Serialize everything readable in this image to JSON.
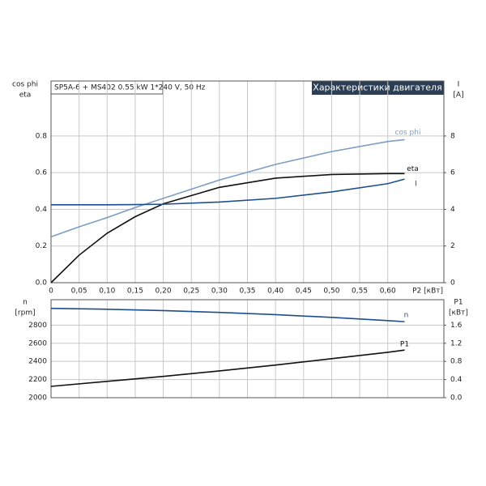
{
  "chart_data": [
    {
      "type": "line",
      "info": "SP5A-6 + MS402  0.55 kW  1*240 V, 50 Hz",
      "title": "Характеристики двигателя",
      "ylabel": [
        "cos phi",
        "eta"
      ],
      "y2label": [
        "I",
        "[A]"
      ],
      "xlabel": "P2 [кВт]",
      "xlim": [
        0,
        0.7
      ],
      "xticks": [
        0,
        {
          "value": 0.05,
          "label": "0,05"
        },
        {
          "value": 0.1,
          "label": "0,10"
        },
        {
          "value": 0.15,
          "label": "0,15"
        },
        {
          "value": 0.2,
          "label": "0,20"
        },
        {
          "value": 0.25,
          "label": "0,25"
        },
        {
          "value": 0.3,
          "label": "0,30"
        },
        {
          "value": 0.35,
          "label": "0,35"
        },
        {
          "value": 0.4,
          "label": "0,40"
        },
        {
          "value": 0.45,
          "label": "0,45"
        },
        {
          "value": 0.5,
          "label": "0,50"
        },
        {
          "value": 0.55,
          "label": "0,55"
        },
        {
          "value": 0.6,
          "label": "0,60"
        }
      ],
      "ylim": [
        0,
        1.1
      ],
      "yticks": [
        {
          "value": 0,
          "label": "0.0"
        },
        {
          "value": 0.2,
          "label": "0.2"
        },
        {
          "value": 0.4,
          "label": "0.4"
        },
        {
          "value": 0.6,
          "label": "0.6"
        },
        {
          "value": 0.8,
          "label": "0.8"
        }
      ],
      "y2lim": [
        0,
        11
      ],
      "y2ticks": [
        0,
        2,
        4,
        6,
        8
      ],
      "grid": true,
      "x": [
        0,
        0.05,
        0.1,
        0.15,
        0.2,
        0.3,
        0.4,
        0.5,
        0.6,
        0.63
      ],
      "series": [
        {
          "name": "cos phi",
          "color": "#7b9dc2",
          "values": [
            0.25,
            0.305,
            0.355,
            0.41,
            0.46,
            0.56,
            0.645,
            0.715,
            0.77,
            0.78
          ]
        },
        {
          "name": "eta",
          "color": "#111111",
          "values": [
            0,
            0.15,
            0.27,
            0.36,
            0.43,
            0.52,
            0.57,
            0.59,
            0.595,
            0.595
          ]
        },
        {
          "name": "I",
          "color": "#1f4e8c",
          "axis": "y2",
          "values": [
            4.25,
            4.25,
            4.25,
            4.26,
            4.28,
            4.4,
            4.6,
            4.95,
            5.4,
            5.65
          ]
        }
      ]
    },
    {
      "type": "line",
      "ylabel": [
        "n",
        "[rpm]"
      ],
      "y2label": [
        "P1",
        "[кВт]"
      ],
      "xlim": [
        0,
        0.7
      ],
      "xticks": [
        0,
        0.05,
        0.1,
        0.15,
        0.2,
        0.25,
        0.3,
        0.35,
        0.4,
        0.45,
        0.5,
        0.55,
        0.6
      ],
      "ylim": [
        2000,
        3080
      ],
      "yticks": [
        2000,
        2200,
        2400,
        2600,
        2800
      ],
      "y2lim": [
        0,
        2.16
      ],
      "y2ticks": [
        {
          "value": 0,
          "label": "0.0"
        },
        {
          "value": 0.4,
          "label": "0.4"
        },
        {
          "value": 0.8,
          "label": "0.8"
        },
        {
          "value": 1.2,
          "label": "1.2"
        },
        {
          "value": 1.6,
          "label": "1.6"
        }
      ],
      "grid": true,
      "x": [
        0,
        0.1,
        0.2,
        0.3,
        0.4,
        0.5,
        0.6,
        0.63
      ],
      "series": [
        {
          "name": "n",
          "color": "#1f4e8c",
          "values": [
            2985,
            2975,
            2960,
            2940,
            2915,
            2885,
            2850,
            2838
          ]
        },
        {
          "name": "P1",
          "color": "#111111",
          "axis": "y2",
          "values": [
            0.25,
            0.36,
            0.47,
            0.59,
            0.72,
            0.86,
            1.0,
            1.05
          ]
        }
      ]
    }
  ]
}
